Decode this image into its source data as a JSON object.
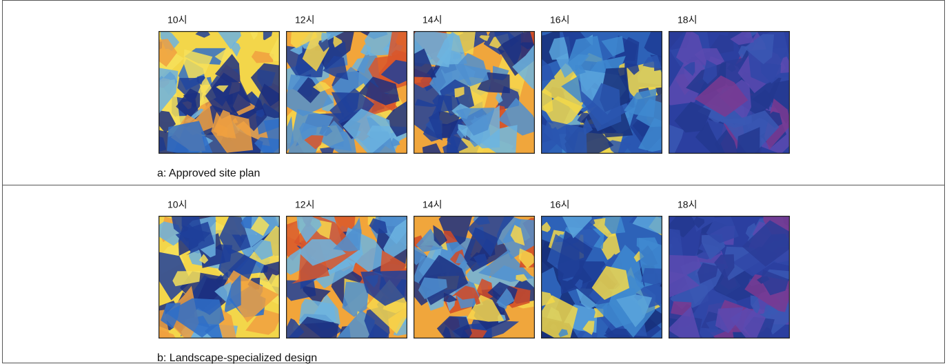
{
  "rows": [
    {
      "times": [
        "10시",
        "12시",
        "14시",
        "16시",
        "18시"
      ],
      "caption": "a: Approved site plan"
    },
    {
      "times": [
        "10시",
        "12시",
        "14시",
        "16시",
        "18시"
      ],
      "caption": "b: Landscape-specialized design"
    }
  ]
}
